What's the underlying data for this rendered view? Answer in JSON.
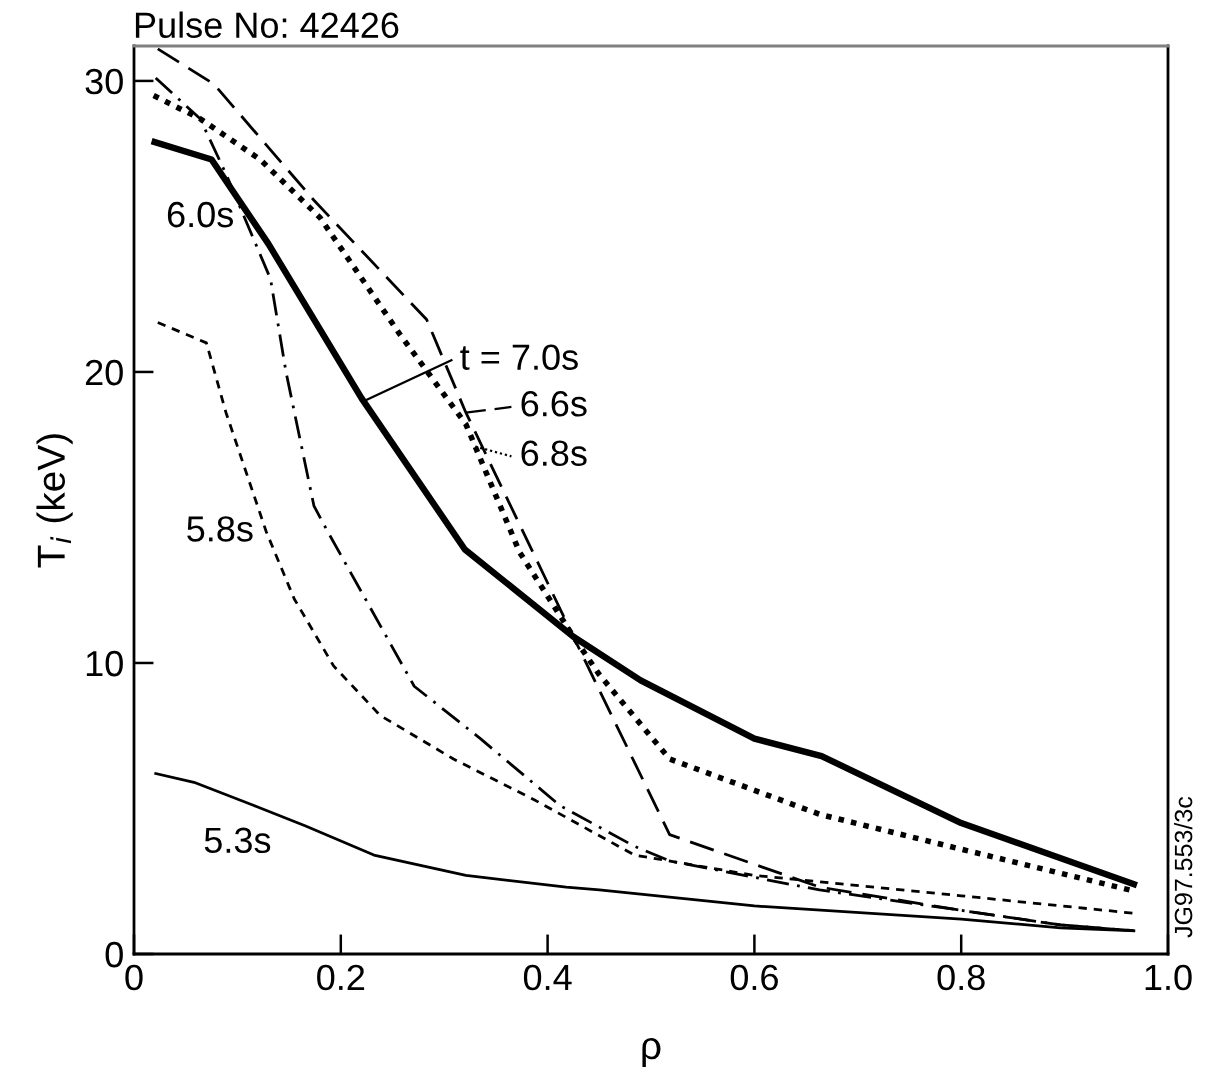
{
  "chart_data": {
    "type": "line",
    "title": "Pulse No: 42426",
    "xlabel": "ρ",
    "ylabel": "T$_{i}$ (keV)",
    "xlim": [
      0,
      1.0
    ],
    "ylim": [
      0,
      31.2
    ],
    "xticks": [
      0,
      0.2,
      0.4,
      0.6,
      0.8,
      {
        "value": 1.0,
        "label": "1.0"
      }
    ],
    "yticks": [
      0,
      10,
      20,
      30
    ],
    "grid": false,
    "legend": "top",
    "marker": "none",
    "annotations": [
      "JG97.553/3c"
    ],
    "series": [
      {
        "name": "t = 7.0s",
        "color": "#000000",
        "line_style": "solid",
        "x": [
          0.02,
          0.075,
          0.13,
          0.22,
          0.32,
          0.425,
          0.49,
          0.6,
          0.665,
          0.8,
          0.967
        ],
        "values": [
          27.9,
          27.3,
          24.4,
          19.1,
          13.9,
          10.9,
          9.4,
          7.4,
          6.8,
          4.5,
          2.4
        ]
      },
      {
        "name": "6.6s",
        "color": "#000000",
        "line_style": "long_dashed",
        "x": [
          0.023,
          0.077,
          0.174,
          0.283,
          0.321,
          0.425,
          0.518,
          0.663,
          0.8,
          0.896,
          0.967
        ],
        "values": [
          31.1,
          29.9,
          25.9,
          21.8,
          18.6,
          10.9,
          4.1,
          2.3,
          1.5,
          1.0,
          0.8
        ]
      },
      {
        "name": "6.8s",
        "color": "#000000",
        "line_style": "dotted",
        "x": [
          0.019,
          0.064,
          0.122,
          0.18,
          0.257,
          0.321,
          0.373,
          0.425,
          0.45,
          0.518,
          0.663,
          0.8,
          0.963
        ],
        "values": [
          29.5,
          28.7,
          27.3,
          25.3,
          21.3,
          18.2,
          13.8,
          10.9,
          9.6,
          6.7,
          4.8,
          3.6,
          2.2
        ]
      },
      {
        "name": "6.0s",
        "color": "#000000",
        "line_style": "dashdot",
        "x": [
          0.021,
          0.064,
          0.089,
          0.132,
          0.147,
          0.174,
          0.186,
          0.271,
          0.335,
          0.412,
          0.484,
          0.518,
          0.663,
          0.8,
          0.896,
          0.967
        ],
        "values": [
          30.1,
          28.7,
          26.8,
          23.2,
          20.0,
          15.4,
          14.6,
          9.2,
          7.4,
          5.1,
          3.7,
          3.2,
          2.2,
          1.5,
          1.0,
          0.8
        ]
      },
      {
        "name": "5.8s",
        "color": "#000000",
        "line_style": "dashed",
        "x": [
          0.023,
          0.07,
          0.089,
          0.128,
          0.155,
          0.193,
          0.238,
          0.309,
          0.387,
          0.484,
          0.6,
          0.8,
          0.967
        ],
        "values": [
          21.7,
          21.0,
          18.6,
          14.5,
          12.2,
          9.9,
          8.2,
          6.7,
          5.3,
          3.4,
          2.7,
          2.0,
          1.4
        ]
      },
      {
        "name": "5.3s",
        "color": "#000000",
        "line_style": "solid",
        "x": [
          0.021,
          0.058,
          0.116,
          0.166,
          0.232,
          0.321,
          0.418,
          0.45,
          0.6,
          0.8,
          0.896,
          0.967
        ],
        "values": [
          6.2,
          5.9,
          5.1,
          4.4,
          3.4,
          2.7,
          2.3,
          2.2,
          1.65,
          1.2,
          0.9,
          0.8
        ]
      }
    ]
  }
}
